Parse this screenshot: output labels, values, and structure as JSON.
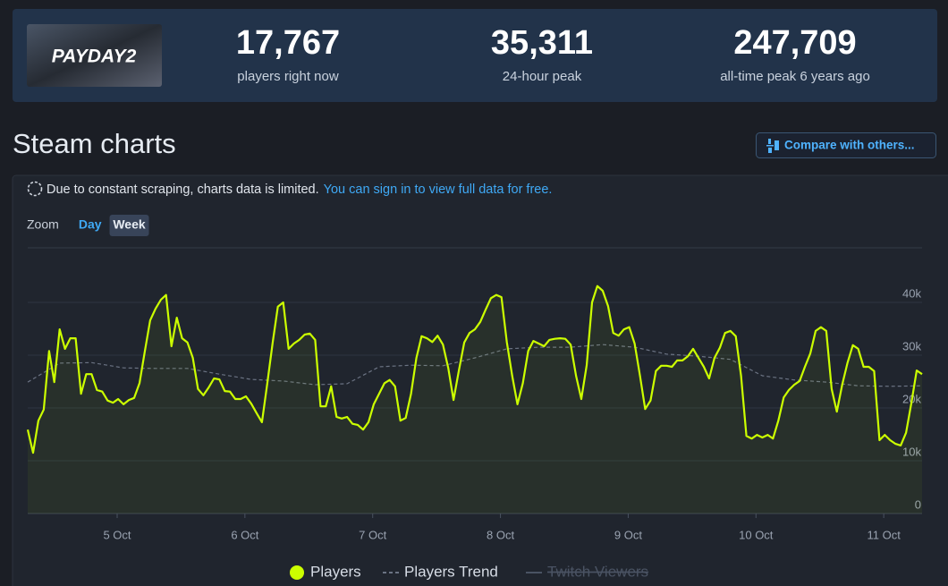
{
  "header": {
    "logo": "PAYDAY2",
    "stats": [
      {
        "value": "17,767",
        "label": "players right now"
      },
      {
        "value": "35,311",
        "label": "24-hour peak"
      },
      {
        "value": "247,709",
        "label": "all-time peak 6 years ago"
      }
    ]
  },
  "section_title": "Steam charts",
  "compare_button": "Compare with others...",
  "notice": {
    "text": "Due to constant scraping, charts data is limited.",
    "link": "You can sign in to view full data for free."
  },
  "zoom": {
    "label": "Zoom",
    "options": [
      "Day",
      "Week"
    ],
    "active": "Week"
  },
  "chart_data": {
    "type": "line",
    "xlim": [
      4.3,
      11.3
    ],
    "xticks": [
      {
        "value": 5,
        "label": "5 Oct"
      },
      {
        "value": 6,
        "label": "6 Oct"
      },
      {
        "value": 7,
        "label": "7 Oct"
      },
      {
        "value": 8,
        "label": "8 Oct"
      },
      {
        "value": 9,
        "label": "9 Oct"
      },
      {
        "value": 10,
        "label": "10 Oct"
      },
      {
        "value": 11,
        "label": "11 Oct"
      }
    ],
    "ylim": [
      0,
      50000
    ],
    "yticks": [
      0,
      {
        "value": 10000,
        "label": "10k"
      },
      {
        "value": 20000,
        "label": "20k"
      },
      {
        "value": 30000,
        "label": "30k"
      },
      {
        "value": 40000,
        "label": "40k"
      }
    ],
    "grid": true,
    "series": [
      {
        "name": "Players",
        "color": "#ccff00",
        "area": true,
        "x": [
          4.3,
          4.342,
          4.383,
          4.425,
          4.467,
          4.508,
          4.55,
          4.592,
          4.633,
          4.675,
          4.717,
          4.758,
          4.8,
          4.842,
          4.883,
          4.925,
          4.967,
          5.008,
          5.05,
          5.092,
          5.133,
          5.175,
          5.217,
          5.258,
          5.3,
          5.342,
          5.383,
          5.425,
          5.467,
          5.508,
          5.55,
          5.592,
          5.633,
          5.675,
          5.717,
          5.758,
          5.8,
          5.842,
          5.883,
          5.925,
          5.967,
          6.008,
          6.05,
          6.092,
          6.133,
          6.175,
          6.217,
          6.258,
          6.3,
          6.342,
          6.383,
          6.425,
          6.467,
          6.508,
          6.55,
          6.592,
          6.633,
          6.675,
          6.717,
          6.758,
          6.8,
          6.842,
          6.883,
          6.925,
          6.967,
          7.008,
          7.05,
          7.092,
          7.133,
          7.175,
          7.217,
          7.258,
          7.3,
          7.342,
          7.383,
          7.425,
          7.467,
          7.508,
          7.55,
          7.592,
          7.633,
          7.675,
          7.717,
          7.758,
          7.8,
          7.842,
          7.883,
          7.925,
          7.967,
          8.008,
          8.05,
          8.092,
          8.133,
          8.175,
          8.217,
          8.258,
          8.3,
          8.342,
          8.383,
          8.425,
          8.467,
          8.508,
          8.55,
          8.592,
          8.633,
          8.675,
          8.717,
          8.758,
          8.8,
          8.842,
          8.883,
          8.925,
          8.967,
          9.008,
          9.05,
          9.092,
          9.133,
          9.175,
          9.217,
          9.258,
          9.3,
          9.342,
          9.383,
          9.425,
          9.467,
          9.508,
          9.55,
          9.592,
          9.633,
          9.675,
          9.717,
          9.758,
          9.8,
          9.842,
          9.883,
          9.925,
          9.967,
          10.008,
          10.05,
          10.092,
          10.133,
          10.175,
          10.217,
          10.258,
          10.3,
          10.342,
          10.383,
          10.425,
          10.467,
          10.508,
          10.55,
          10.592,
          10.633,
          10.675,
          10.717,
          10.758,
          10.8,
          10.842,
          10.883,
          10.925,
          10.967,
          11.008,
          11.05,
          11.092,
          11.133,
          11.175,
          11.217,
          11.258,
          11.3
        ],
        "values": [
          15900,
          11500,
          17600,
          19700,
          30800,
          24900,
          34900,
          31200,
          33200,
          33200,
          22700,
          26400,
          26400,
          23400,
          23100,
          21400,
          21000,
          21700,
          20700,
          21500,
          21900,
          24700,
          30800,
          36600,
          38800,
          40500,
          41400,
          31700,
          37100,
          33200,
          32400,
          29500,
          23600,
          22400,
          23900,
          25600,
          25400,
          23200,
          23100,
          21700,
          21700,
          22200,
          20800,
          19000,
          17300,
          24700,
          32400,
          39200,
          40000,
          31200,
          32200,
          32900,
          33900,
          34100,
          32900,
          20300,
          20300,
          24100,
          18300,
          18000,
          18300,
          17000,
          16800,
          15900,
          17300,
          20700,
          22700,
          24700,
          25300,
          24100,
          17600,
          18100,
          22700,
          29500,
          33600,
          33200,
          32500,
          33700,
          32000,
          27500,
          21500,
          27100,
          32400,
          34200,
          34900,
          36300,
          38600,
          40800,
          41400,
          41000,
          32500,
          26100,
          20700,
          24700,
          30800,
          32700,
          32200,
          31700,
          32900,
          33100,
          33200,
          33100,
          32000,
          26100,
          21700,
          28100,
          40000,
          43100,
          42200,
          39300,
          34200,
          33700,
          34900,
          35300,
          32200,
          26100,
          19800,
          21400,
          27000,
          28000,
          28000,
          27800,
          29000,
          29000,
          29800,
          31200,
          29500,
          27800,
          25600,
          29500,
          31400,
          34200,
          34600,
          33600,
          26100,
          14700,
          14200,
          14900,
          14400,
          14900,
          14200,
          17600,
          22000,
          23400,
          24400,
          25100,
          27800,
          30300,
          34600,
          35300,
          34600,
          23600,
          19300,
          24400,
          28600,
          31900,
          31200,
          27800,
          27800,
          27000,
          13900,
          14900,
          13900,
          13200,
          12900,
          15300,
          21000,
          27100,
          26400
        ]
      },
      {
        "name": "Players Trend",
        "color": "#6b7383",
        "dashed": true,
        "x": [
          4.3,
          4.55,
          4.8,
          5.05,
          5.3,
          5.55,
          5.8,
          6.05,
          6.3,
          6.55,
          6.8,
          7.05,
          7.3,
          7.55,
          7.8,
          8.05,
          8.3,
          8.55,
          8.8,
          9.05,
          9.3,
          9.55,
          9.8,
          10.05,
          10.3,
          10.55,
          10.8,
          11.05,
          11.3
        ],
        "values": [
          24900,
          28500,
          28600,
          27600,
          27500,
          27500,
          26400,
          25400,
          25100,
          24400,
          24600,
          27800,
          28100,
          28000,
          29500,
          31200,
          31500,
          31500,
          32000,
          31500,
          30200,
          29800,
          29200,
          26100,
          25300,
          24900,
          24200,
          24100,
          24200
        ]
      },
      {
        "name": "Twitch Viewers",
        "color": "#4a5363",
        "visible": false
      }
    ]
  }
}
